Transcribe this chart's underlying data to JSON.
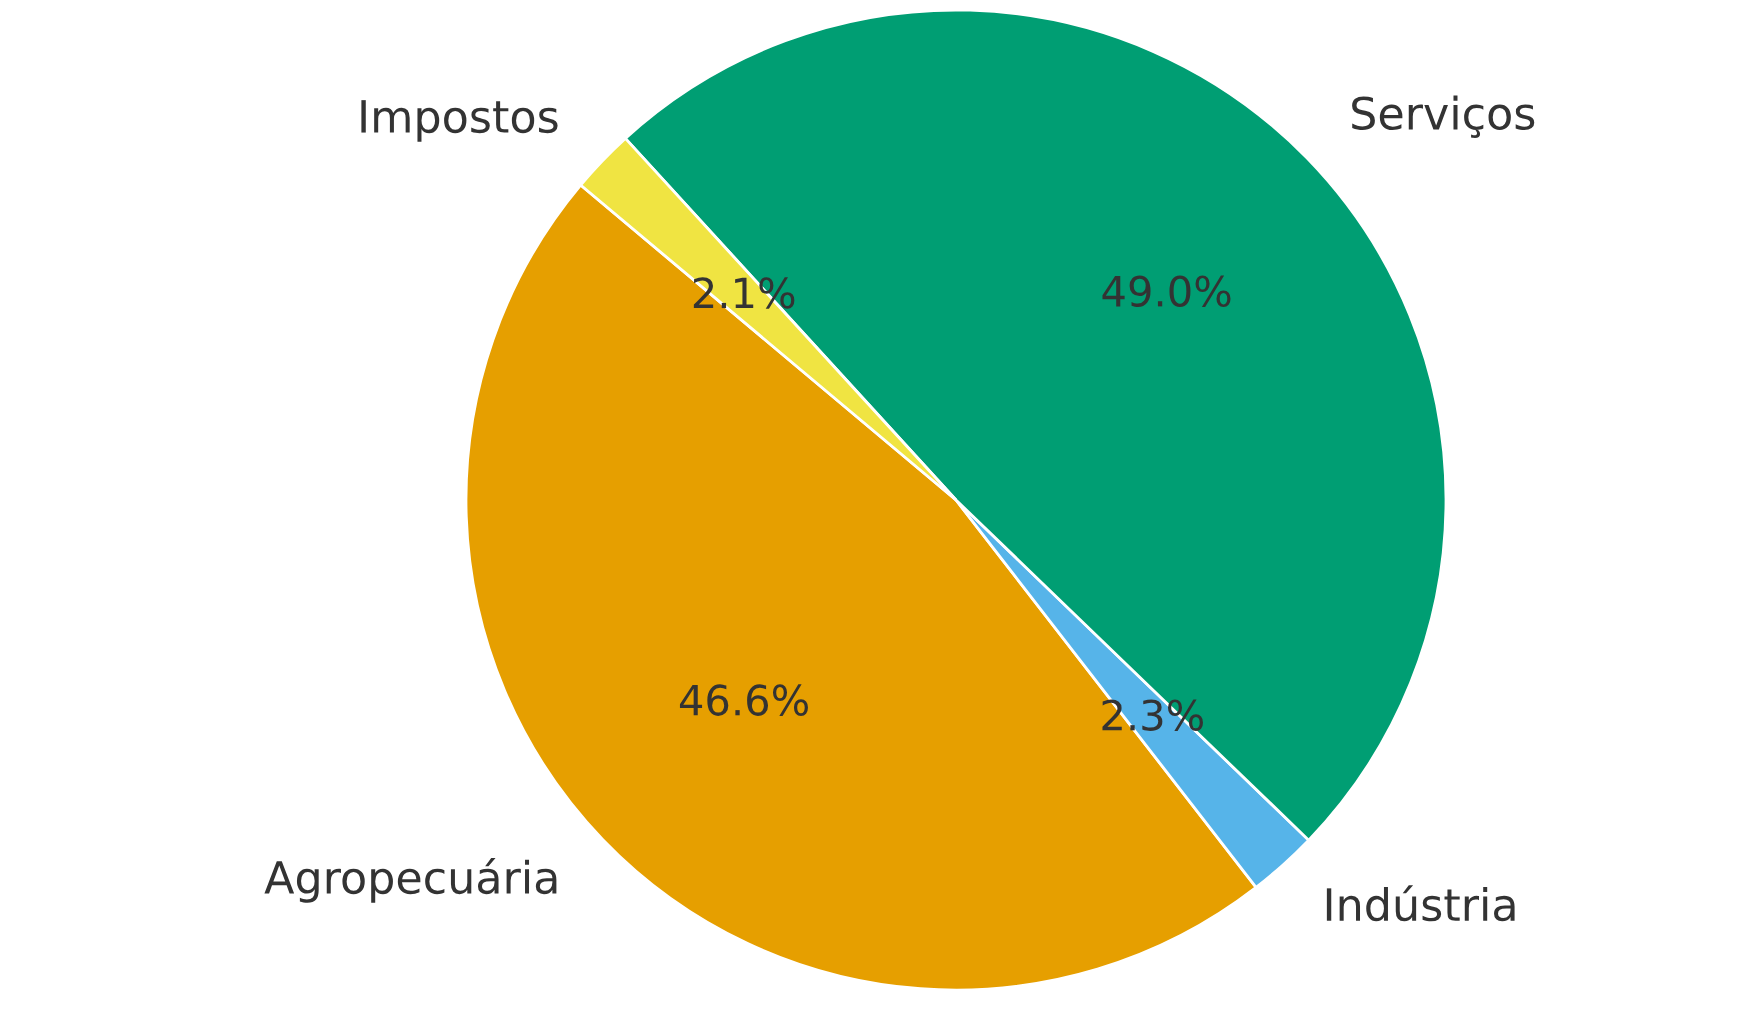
{
  "chart_data": {
    "type": "pie",
    "categories": [
      "Agropecuária",
      "Indústria",
      "Serviços",
      "Impostos"
    ],
    "values": [
      46.6,
      2.3,
      49.0,
      2.1
    ],
    "colors": [
      "#e69f00",
      "#56b4e9",
      "#009e73",
      "#f0e442"
    ],
    "value_labels": [
      "46.6%",
      "2.3%",
      "49.0%",
      "2.1%"
    ]
  }
}
